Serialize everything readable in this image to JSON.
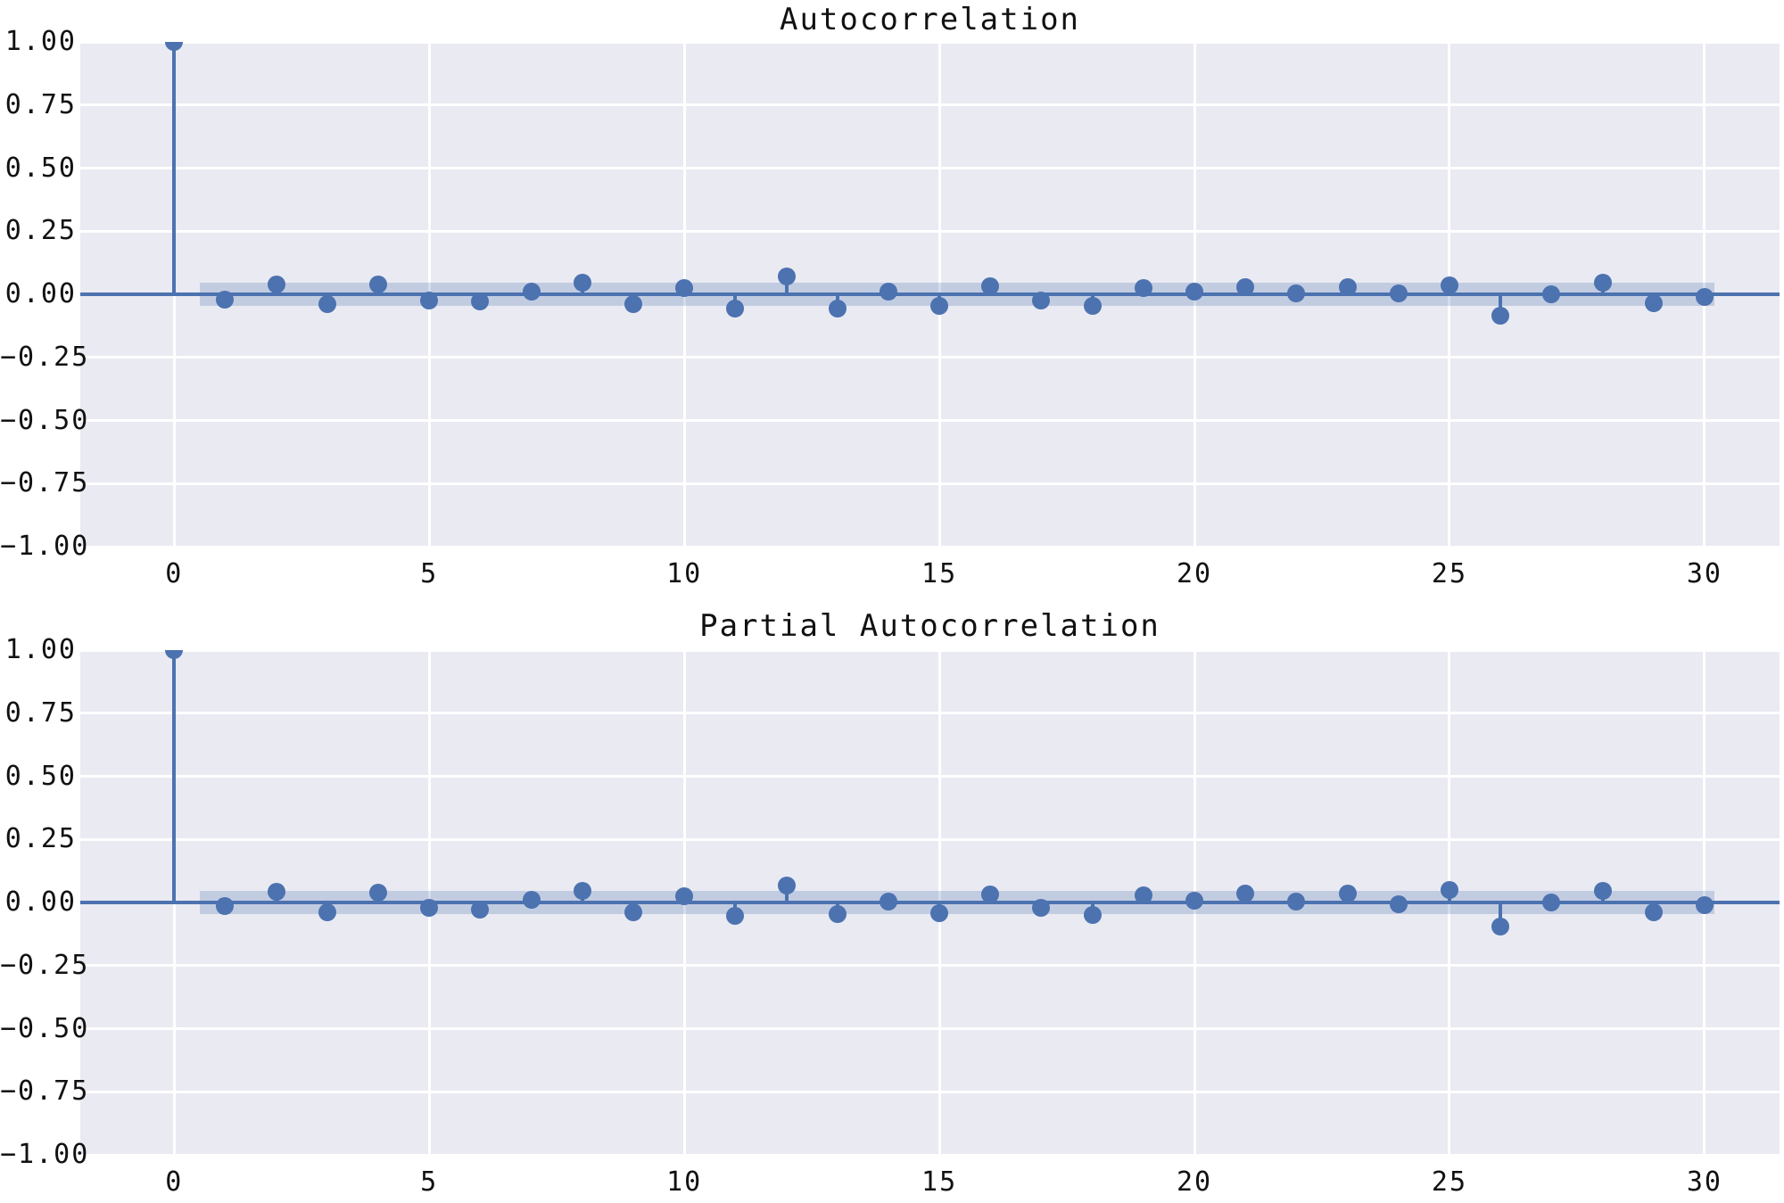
{
  "figure": {
    "background": "#ffffff",
    "axes_background": "#eaeaf2",
    "grid_color": "#ffffff",
    "line_color": "#4c72b0",
    "band_color": "rgba(76,114,176,0.25)",
    "text_color": "#111111"
  },
  "chart_data": [
    {
      "type": "stem",
      "title": "Autocorrelation",
      "xlabel": "",
      "ylabel": "",
      "grid": true,
      "legend": "none",
      "xlim": [
        -1.84,
        31.47
      ],
      "ylim": [
        -1.0,
        1.0
      ],
      "confidence_interval": 0.045,
      "band_lag_range": [
        0.5,
        30.2
      ],
      "x_ticks": {
        "values": [
          0,
          5,
          10,
          15,
          20,
          25,
          30
        ],
        "labels": [
          "0",
          "5",
          "10",
          "15",
          "20",
          "25",
          "30"
        ]
      },
      "y_ticks": {
        "values": [
          1.0,
          0.75,
          0.5,
          0.25,
          0.0,
          -0.25,
          -0.5,
          -0.75,
          -1.0
        ],
        "labels": [
          "1.00",
          "0.75",
          "0.50",
          "0.25",
          "0.00",
          "−0.25",
          "−0.50",
          "−0.75",
          "−1.00"
        ]
      },
      "lags": [
        0,
        1,
        2,
        3,
        4,
        5,
        6,
        7,
        8,
        9,
        10,
        11,
        12,
        13,
        14,
        15,
        16,
        17,
        18,
        19,
        20,
        21,
        22,
        23,
        24,
        25,
        26,
        27,
        28,
        29,
        30
      ],
      "values": [
        1.0,
        -0.02,
        0.04,
        -0.04,
        0.04,
        -0.025,
        -0.03,
        0.01,
        0.045,
        -0.04,
        0.025,
        -0.055,
        0.07,
        -0.055,
        0.012,
        -0.045,
        0.032,
        -0.025,
        -0.045,
        0.023,
        0.01,
        0.03,
        0.005,
        0.028,
        0.005,
        0.035,
        -0.085,
        0.0,
        0.045,
        -0.035,
        -0.012
      ]
    },
    {
      "type": "stem",
      "title": "Partial Autocorrelation",
      "xlabel": "",
      "ylabel": "",
      "grid": true,
      "legend": "none",
      "xlim": [
        -1.84,
        31.47
      ],
      "ylim": [
        -1.0,
        1.0
      ],
      "confidence_interval": 0.045,
      "band_lag_range": [
        0.5,
        30.2
      ],
      "x_ticks": {
        "values": [
          0,
          5,
          10,
          15,
          20,
          25,
          30
        ],
        "labels": [
          "0",
          "5",
          "10",
          "15",
          "20",
          "25",
          "30"
        ]
      },
      "y_ticks": {
        "values": [
          1.0,
          0.75,
          0.5,
          0.25,
          0.0,
          -0.25,
          -0.5,
          -0.75,
          -1.0
        ],
        "labels": [
          "1.00",
          "0.75",
          "0.50",
          "0.25",
          "0.00",
          "−0.25",
          "−0.50",
          "−0.75",
          "−1.00"
        ]
      },
      "lags": [
        0,
        1,
        2,
        3,
        4,
        5,
        6,
        7,
        8,
        9,
        10,
        11,
        12,
        13,
        14,
        15,
        16,
        17,
        18,
        19,
        20,
        21,
        22,
        23,
        24,
        25,
        26,
        27,
        28,
        29,
        30
      ],
      "values": [
        1.0,
        -0.015,
        0.042,
        -0.04,
        0.04,
        -0.022,
        -0.03,
        0.012,
        0.045,
        -0.04,
        0.024,
        -0.053,
        0.068,
        -0.045,
        0.005,
        -0.042,
        0.033,
        -0.02,
        -0.048,
        0.03,
        0.008,
        0.036,
        0.005,
        0.036,
        -0.008,
        0.05,
        -0.095,
        0.0,
        0.045,
        -0.038,
        -0.01
      ]
    }
  ]
}
